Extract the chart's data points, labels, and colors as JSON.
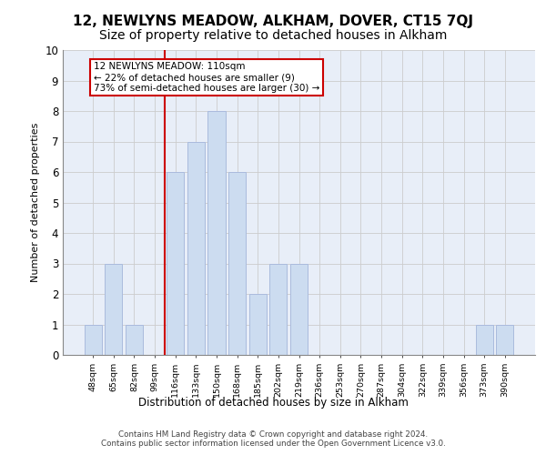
{
  "title1": "12, NEWLYNS MEADOW, ALKHAM, DOVER, CT15 7QJ",
  "title2": "Size of property relative to detached houses in Alkham",
  "xlabel": "Distribution of detached houses by size in Alkham",
  "ylabel": "Number of detached properties",
  "footer1": "Contains HM Land Registry data © Crown copyright and database right 2024.",
  "footer2": "Contains public sector information licensed under the Open Government Licence v3.0.",
  "annotation_line1": "12 NEWLYNS MEADOW: 110sqm",
  "annotation_line2": "← 22% of detached houses are smaller (9)",
  "annotation_line3": "73% of semi-detached houses are larger (30) →",
  "bar_labels": [
    "48sqm",
    "65sqm",
    "82sqm",
    "99sqm",
    "116sqm",
    "133sqm",
    "150sqm",
    "168sqm",
    "185sqm",
    "202sqm",
    "219sqm",
    "236sqm",
    "253sqm",
    "270sqm",
    "287sqm",
    "304sqm",
    "322sqm",
    "339sqm",
    "356sqm",
    "373sqm",
    "390sqm"
  ],
  "bar_values": [
    1,
    3,
    1,
    0,
    6,
    7,
    8,
    6,
    2,
    3,
    3,
    0,
    0,
    0,
    0,
    0,
    0,
    0,
    0,
    1,
    1
  ],
  "bar_color": "#ccdcf0",
  "bar_edge_color": "#aabbdd",
  "grid_color": "#cccccc",
  "red_line_x": 3.5,
  "red_line_color": "#cc0000",
  "annotation_box_edge_color": "#cc0000",
  "ylim": [
    0,
    10
  ],
  "yticks": [
    0,
    1,
    2,
    3,
    4,
    5,
    6,
    7,
    8,
    9,
    10
  ],
  "background_color": "#e8eef8",
  "title1_fontsize": 11,
  "title2_fontsize": 10
}
